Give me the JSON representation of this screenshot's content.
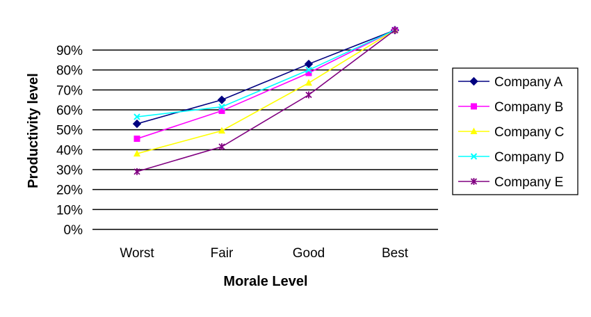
{
  "chart_data": {
    "type": "line",
    "title": "",
    "xlabel": "Morale Level",
    "ylabel": "Productivity level",
    "categories": [
      "Worst",
      "Fair",
      "Good",
      "Best"
    ],
    "ylim": [
      0,
      90
    ],
    "ytick_labels": [
      "0%",
      "10%",
      "20%",
      "30%",
      "40%",
      "50%",
      "60%",
      "70%",
      "80%",
      "90%"
    ],
    "grid": true,
    "legend_position": "right",
    "series": [
      {
        "name": "Company A",
        "values": [
          53,
          65,
          83,
          100
        ],
        "color": "#000080",
        "marker": "diamond"
      },
      {
        "name": "Company B",
        "values": [
          45.5,
          59.5,
          78.5,
          100
        ],
        "color": "#ff00ff",
        "marker": "square"
      },
      {
        "name": "Company C",
        "values": [
          38,
          49.5,
          73.5,
          100
        ],
        "color": "#ffff00",
        "marker": "triangle"
      },
      {
        "name": "Company D",
        "values": [
          56.5,
          61.5,
          80,
          100
        ],
        "color": "#00ffff",
        "marker": "x"
      },
      {
        "name": "Company E",
        "values": [
          29,
          41.5,
          67.5,
          100
        ],
        "color": "#800080",
        "marker": "star"
      }
    ]
  }
}
